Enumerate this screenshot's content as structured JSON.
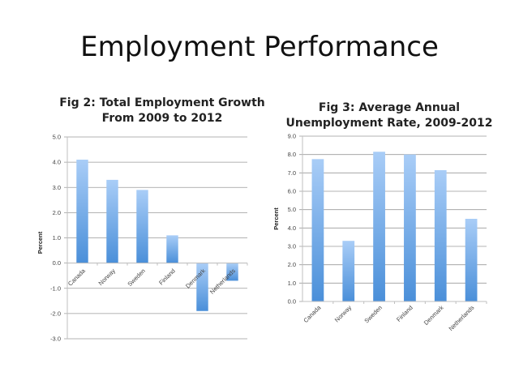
{
  "slide": {
    "title": "Employment Performance"
  },
  "colors": {
    "bar_top": "#a9cdf7",
    "bar_bottom": "#4a8fd9",
    "grid": "#9a9a9a",
    "axis": "#bfbfbf"
  },
  "charts": [
    {
      "title_line1": "Fig 2: Total Employment Growth",
      "title_line2": "From 2009 to 2012",
      "ylabel": "Percent"
    },
    {
      "title_line1": "Fig 3: Average Annual",
      "title_line2": "Unemployment Rate, 2009-2012",
      "ylabel": "Percent"
    }
  ],
  "chart_data": [
    {
      "type": "bar",
      "title": "Fig 2: Total Employment Growth From 2009 to 2012",
      "xlabel": "",
      "ylabel": "Percent",
      "categories": [
        "Canada",
        "Norway",
        "Sweden",
        "Finland",
        "Denmark",
        "Netherlands"
      ],
      "values": [
        4.1,
        3.3,
        2.9,
        1.1,
        -1.9,
        -0.7
      ],
      "ylim": [
        -3.0,
        5.0
      ],
      "yticks": [
        "5.0",
        "4.0",
        "3.0",
        "2.0",
        "1.0",
        "0.0",
        "-1.0",
        "-2.0",
        "-3.0"
      ],
      "grid": true,
      "legend": null
    },
    {
      "type": "bar",
      "title": "Fig 3: Average Annual Unemployment Rate, 2009-2012",
      "xlabel": "",
      "ylabel": "Percent",
      "categories": [
        "Canada",
        "Norway",
        "Sweden",
        "Finland",
        "Denmark",
        "Netherlands"
      ],
      "values": [
        7.75,
        3.3,
        8.15,
        8.0,
        7.15,
        4.5
      ],
      "ylim": [
        0.0,
        9.0
      ],
      "yticks": [
        "9.0",
        "8.0",
        "7.0",
        "6.0",
        "5.0",
        "4.0",
        "3.0",
        "2.0",
        "1.0",
        "0.0"
      ],
      "grid": true,
      "legend": null
    }
  ]
}
